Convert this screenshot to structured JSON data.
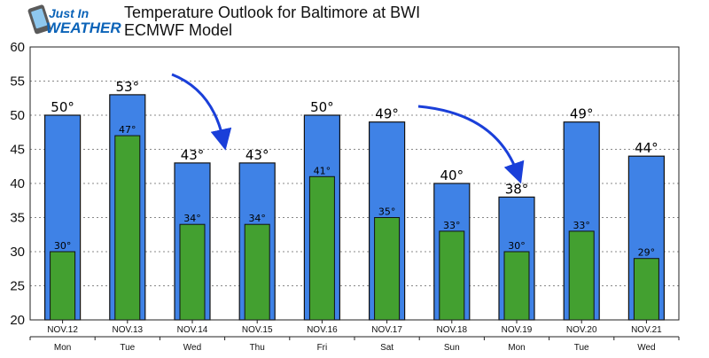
{
  "logo": {
    "line1": "Just In",
    "line2": "WEATHER"
  },
  "chart_data": {
    "type": "bar",
    "title": "Temperature Outlook for Baltimore at BWI",
    "subtitle": "ECMWF Model",
    "xlabel": "",
    "ylabel": "",
    "ylim": [
      20,
      60
    ],
    "yticks": [
      20,
      25,
      30,
      35,
      40,
      45,
      50,
      55,
      60
    ],
    "grid": true,
    "legend": "none",
    "categories": [
      "NOV.12",
      "NOV.13",
      "NOV.14",
      "NOV.15",
      "NOV.16",
      "NOV.17",
      "NOV.18",
      "NOV.19",
      "NOV.20",
      "NOV.21"
    ],
    "days": [
      "Mon",
      "Tue",
      "Wed",
      "Thu",
      "Fri",
      "Sat",
      "Sun",
      "Mon",
      "Tue",
      "Wed"
    ],
    "series": [
      {
        "values": [
          50,
          53,
          43,
          43,
          50,
          49,
          40,
          38,
          49,
          44
        ],
        "color": "#3f82e6",
        "labels": [
          "50°",
          "53°",
          "43°",
          "43°",
          "50°",
          "49°",
          "40°",
          "38°",
          "49°",
          "44°"
        ]
      },
      {
        "values": [
          30,
          47,
          34,
          34,
          41,
          35,
          33,
          30,
          33,
          29
        ],
        "color": "#43a030",
        "labels": [
          "30°",
          "47°",
          "34°",
          "34°",
          "41°",
          "35°",
          "33°",
          "30°",
          "33°",
          "29°"
        ]
      }
    ]
  }
}
